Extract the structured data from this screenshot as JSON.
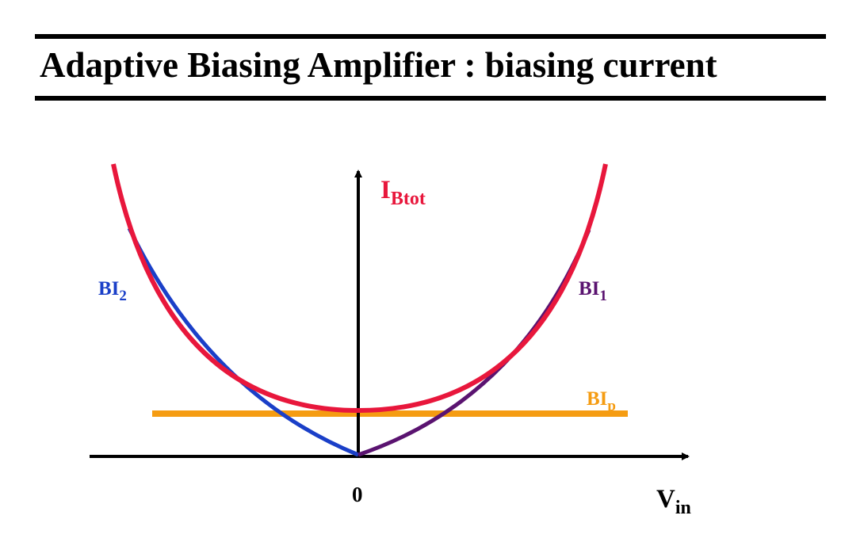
{
  "header": {
    "title": "Adaptive Biasing Amplifier : biasing current"
  },
  "diagram": {
    "x_axis_label": {
      "main": "V",
      "sub": "in"
    },
    "origin_label": "0",
    "curves": {
      "total": {
        "main": "I",
        "sub": "Btot",
        "color": "#e8173c"
      },
      "bi2": {
        "main": "BI",
        "sub": "2",
        "color": "#1a3fc8"
      },
      "bi1": {
        "main": "BI",
        "sub": "1",
        "color": "#5a1370"
      },
      "bip": {
        "main": "BI",
        "sub": "p",
        "color": "#f59c12"
      }
    },
    "axis_color": "#000000"
  }
}
